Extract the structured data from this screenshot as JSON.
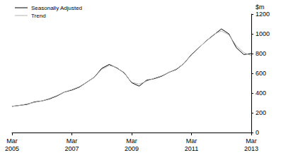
{
  "chart_data": {
    "type": "line",
    "ylabel": "$m",
    "categories": [
      "Mar\n2005",
      null,
      null,
      null,
      null,
      null,
      null,
      null,
      "Mar\n2007",
      null,
      null,
      null,
      null,
      null,
      null,
      null,
      "Mar\n2009",
      null,
      null,
      null,
      null,
      null,
      null,
      null,
      "Mar\n2011",
      null,
      null,
      null,
      null,
      null,
      null,
      null,
      "Mar\n2013"
    ],
    "series": [
      {
        "name": "Seasonally Adjusted",
        "color": "#000000",
        "values": [
          265,
          275,
          285,
          310,
          320,
          340,
          370,
          410,
          430,
          460,
          510,
          560,
          650,
          690,
          655,
          605,
          505,
          470,
          530,
          545,
          570,
          610,
          640,
          700,
          790,
          860,
          930,
          990,
          1050,
          1000,
          860,
          790,
          800
        ]
      },
      {
        "name": "Trend",
        "color": "#b3b3b3",
        "values": [
          265,
          275,
          290,
          305,
          320,
          345,
          375,
          410,
          435,
          465,
          510,
          560,
          640,
          680,
          660,
          600,
          510,
          490,
          520,
          550,
          575,
          610,
          645,
          700,
          785,
          860,
          930,
          995,
          1030,
          990,
          880,
          810,
          780
        ]
      }
    ],
    "ylim": [
      0,
      1200
    ],
    "yticks": [
      0,
      200,
      400,
      600,
      800,
      1000,
      1200
    ],
    "grid": false,
    "legend": "upper left"
  }
}
